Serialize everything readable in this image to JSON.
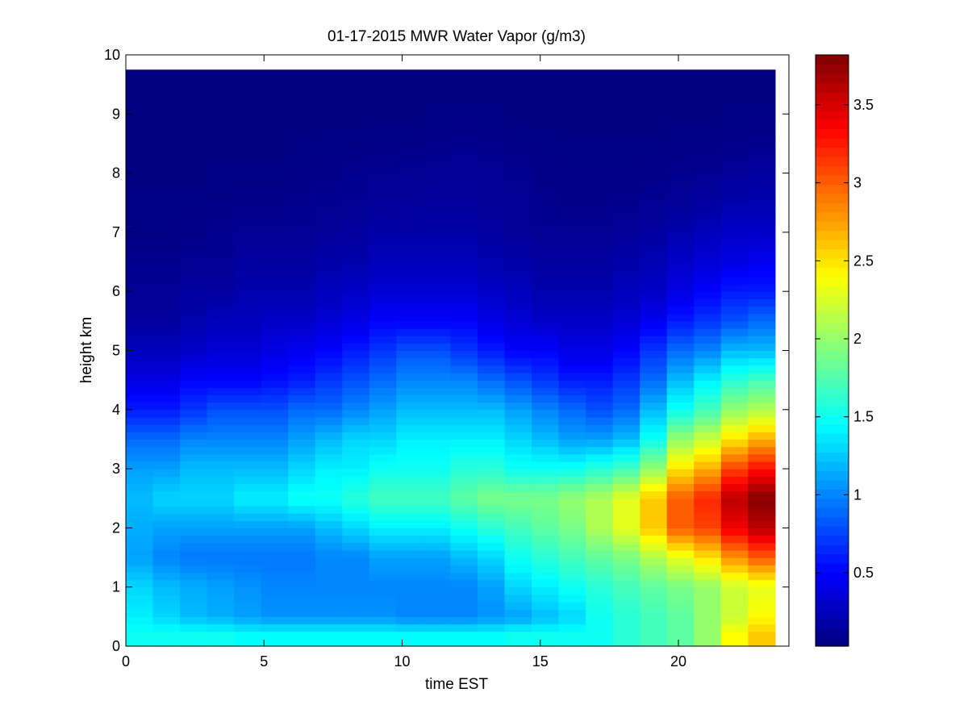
{
  "chart_data": {
    "type": "heatmap",
    "title": "01-17-2015 MWR Water Vapor (g/m3)",
    "xlabel": "time EST",
    "ylabel": "height km",
    "xlim": [
      0,
      24
    ],
    "ylim": [
      0,
      10
    ],
    "data_extent": {
      "x": [
        0,
        23.5
      ],
      "y": [
        0,
        9.75
      ]
    },
    "xticks": [
      "0",
      "5",
      "10",
      "15",
      "20"
    ],
    "yticks": [
      "0",
      "1",
      "2",
      "3",
      "4",
      "5",
      "6",
      "7",
      "8",
      "9",
      "10"
    ],
    "colorbar": {
      "colormap": "jet",
      "range": [
        0.03,
        3.82
      ],
      "ticks": [
        "0.5",
        "1",
        "1.5",
        "2",
        "2.5",
        "3",
        "3.5"
      ]
    },
    "time_hours": [
      0.5,
      1.5,
      2.5,
      3.5,
      4.5,
      5.5,
      6.5,
      7.5,
      8.5,
      9.5,
      10.5,
      11.5,
      12.5,
      13.5,
      14.5,
      15.5,
      16.5,
      17.5,
      18.5,
      19.5,
      20.5,
      21.5,
      22.5,
      23.5
    ],
    "profiles": [
      {
        "height_km": 0.2,
        "values": [
          1.5,
          1.5,
          1.5,
          1.5,
          1.45,
          1.45,
          1.45,
          1.45,
          1.45,
          1.45,
          1.45,
          1.45,
          1.45,
          1.45,
          1.5,
          1.5,
          1.5,
          1.5,
          1.6,
          1.7,
          1.8,
          2.0,
          2.4,
          2.6
        ]
      },
      {
        "height_km": 0.5,
        "values": [
          1.4,
          1.3,
          1.2,
          1.15,
          1.1,
          1.05,
          1.05,
          1.05,
          1.05,
          1.05,
          1.0,
          1.0,
          1.0,
          1.05,
          1.1,
          1.2,
          1.3,
          1.5,
          1.6,
          1.7,
          1.8,
          2.0,
          2.2,
          2.4
        ]
      },
      {
        "height_km": 1.0,
        "values": [
          1.3,
          1.2,
          1.15,
          1.1,
          1.05,
          1.0,
          1.0,
          1.0,
          1.0,
          1.0,
          1.0,
          1.0,
          1.0,
          1.1,
          1.3,
          1.4,
          1.5,
          1.6,
          1.7,
          1.8,
          1.9,
          2.0,
          2.2,
          2.3
        ]
      },
      {
        "height_km": 1.5,
        "values": [
          1.1,
          1.0,
          0.95,
          0.95,
          0.95,
          0.95,
          0.95,
          1.0,
          1.0,
          1.1,
          1.1,
          1.1,
          1.2,
          1.3,
          1.5,
          1.6,
          1.7,
          1.8,
          1.9,
          2.1,
          2.3,
          2.5,
          2.8,
          3.0
        ]
      },
      {
        "height_km": 2.0,
        "values": [
          1.15,
          1.1,
          1.1,
          1.1,
          1.1,
          1.1,
          1.1,
          1.2,
          1.3,
          1.4,
          1.4,
          1.4,
          1.5,
          1.6,
          1.7,
          1.8,
          1.9,
          2.1,
          2.3,
          2.6,
          3.0,
          3.1,
          3.4,
          3.6
        ]
      },
      {
        "height_km": 2.5,
        "values": [
          1.2,
          1.3,
          1.3,
          1.3,
          1.4,
          1.4,
          1.5,
          1.5,
          1.6,
          1.7,
          1.7,
          1.7,
          1.8,
          1.9,
          1.9,
          1.9,
          2.0,
          2.1,
          2.3,
          2.6,
          3.0,
          3.2,
          3.6,
          3.8
        ]
      },
      {
        "height_km": 3.0,
        "values": [
          1.1,
          1.1,
          1.2,
          1.2,
          1.2,
          1.2,
          1.3,
          1.4,
          1.4,
          1.5,
          1.5,
          1.5,
          1.6,
          1.6,
          1.5,
          1.5,
          1.5,
          1.6,
          1.7,
          2.0,
          2.5,
          2.7,
          3.1,
          3.3
        ]
      },
      {
        "height_km": 3.5,
        "values": [
          0.9,
          0.9,
          1.0,
          1.0,
          1.0,
          1.0,
          1.1,
          1.2,
          1.3,
          1.3,
          1.4,
          1.4,
          1.4,
          1.4,
          1.3,
          1.2,
          1.1,
          1.1,
          1.2,
          1.5,
          2.0,
          2.2,
          2.5,
          2.7
        ]
      },
      {
        "height_km": 4.0,
        "values": [
          0.6,
          0.6,
          0.7,
          0.8,
          0.8,
          0.8,
          0.9,
          0.9,
          1.0,
          1.1,
          1.2,
          1.2,
          1.2,
          1.2,
          1.1,
          1.0,
          0.9,
          0.8,
          0.9,
          1.2,
          1.5,
          1.7,
          2.0,
          2.1
        ]
      },
      {
        "height_km": 4.5,
        "values": [
          0.4,
          0.4,
          0.5,
          0.5,
          0.5,
          0.55,
          0.6,
          0.7,
          0.8,
          0.9,
          1.0,
          1.0,
          1.0,
          0.9,
          0.8,
          0.7,
          0.6,
          0.6,
          0.7,
          0.9,
          1.2,
          1.4,
          1.6,
          1.7
        ]
      },
      {
        "height_km": 5.0,
        "values": [
          0.25,
          0.25,
          0.3,
          0.35,
          0.35,
          0.4,
          0.45,
          0.5,
          0.6,
          0.7,
          0.8,
          0.8,
          0.7,
          0.6,
          0.5,
          0.5,
          0.4,
          0.4,
          0.5,
          0.7,
          0.9,
          1.0,
          1.2,
          1.2
        ]
      },
      {
        "height_km": 5.5,
        "values": [
          0.15,
          0.15,
          0.2,
          0.25,
          0.25,
          0.3,
          0.3,
          0.35,
          0.4,
          0.5,
          0.5,
          0.5,
          0.5,
          0.4,
          0.35,
          0.3,
          0.3,
          0.3,
          0.35,
          0.45,
          0.6,
          0.7,
          0.8,
          0.9
        ]
      },
      {
        "height_km": 6.0,
        "values": [
          0.1,
          0.1,
          0.15,
          0.15,
          0.2,
          0.2,
          0.2,
          0.25,
          0.3,
          0.35,
          0.35,
          0.35,
          0.35,
          0.3,
          0.25,
          0.2,
          0.2,
          0.2,
          0.25,
          0.3,
          0.4,
          0.5,
          0.6,
          0.6
        ]
      },
      {
        "height_km": 6.5,
        "values": [
          0.08,
          0.08,
          0.1,
          0.1,
          0.15,
          0.15,
          0.15,
          0.18,
          0.2,
          0.25,
          0.25,
          0.25,
          0.25,
          0.2,
          0.18,
          0.15,
          0.15,
          0.15,
          0.18,
          0.22,
          0.3,
          0.35,
          0.4,
          0.45
        ]
      },
      {
        "height_km": 7.0,
        "values": [
          0.05,
          0.05,
          0.07,
          0.08,
          0.1,
          0.1,
          0.1,
          0.12,
          0.14,
          0.18,
          0.18,
          0.18,
          0.18,
          0.15,
          0.12,
          0.1,
          0.1,
          0.1,
          0.12,
          0.15,
          0.2,
          0.25,
          0.3,
          0.3
        ]
      },
      {
        "height_km": 7.5,
        "values": [
          0.05,
          0.05,
          0.05,
          0.06,
          0.07,
          0.07,
          0.08,
          0.09,
          0.1,
          0.12,
          0.13,
          0.14,
          0.14,
          0.12,
          0.1,
          0.08,
          0.07,
          0.07,
          0.08,
          0.1,
          0.12,
          0.15,
          0.2,
          0.2
        ]
      },
      {
        "height_km": 8.0,
        "values": [
          0.04,
          0.04,
          0.04,
          0.05,
          0.05,
          0.05,
          0.06,
          0.07,
          0.08,
          0.09,
          0.1,
          0.11,
          0.12,
          0.11,
          0.09,
          0.07,
          0.06,
          0.06,
          0.06,
          0.07,
          0.08,
          0.09,
          0.12,
          0.15
        ]
      },
      {
        "height_km": 8.5,
        "values": [
          0.03,
          0.03,
          0.04,
          0.04,
          0.04,
          0.04,
          0.05,
          0.05,
          0.05,
          0.06,
          0.06,
          0.07,
          0.08,
          0.07,
          0.06,
          0.05,
          0.05,
          0.05,
          0.05,
          0.05,
          0.06,
          0.06,
          0.07,
          0.08
        ]
      },
      {
        "height_km": 9.0,
        "values": [
          0.03,
          0.03,
          0.03,
          0.03,
          0.03,
          0.03,
          0.03,
          0.04,
          0.04,
          0.04,
          0.04,
          0.05,
          0.05,
          0.05,
          0.04,
          0.04,
          0.03,
          0.03,
          0.03,
          0.03,
          0.04,
          0.04,
          0.05,
          0.05
        ]
      },
      {
        "height_km": 9.75,
        "values": [
          0.03,
          0.03,
          0.03,
          0.03,
          0.03,
          0.03,
          0.03,
          0.03,
          0.03,
          0.03,
          0.03,
          0.03,
          0.03,
          0.03,
          0.03,
          0.03,
          0.03,
          0.03,
          0.03,
          0.03,
          0.03,
          0.03,
          0.03,
          0.03
        ]
      }
    ]
  }
}
